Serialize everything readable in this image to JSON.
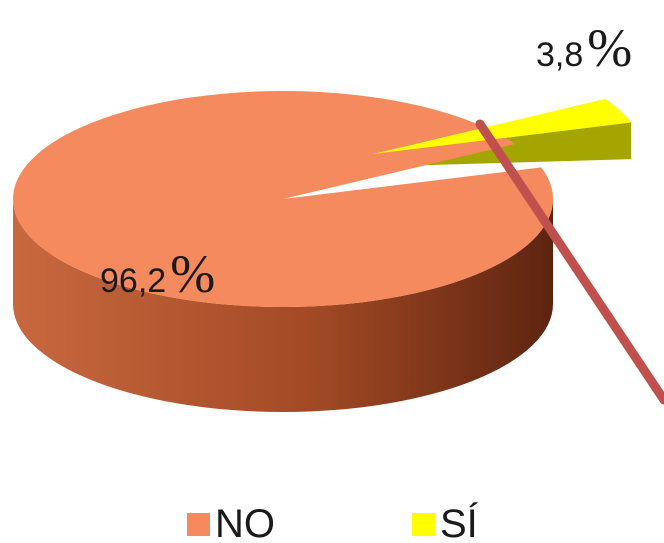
{
  "chart_data": {
    "type": "pie",
    "style": "3d-exploded",
    "title": "",
    "slices": [
      {
        "label": "NO",
        "value": 96.2,
        "display_number": "96,2",
        "display_unit": "%",
        "color": "#F58A5E",
        "side_color": "#8B3A1C"
      },
      {
        "label": "SÍ",
        "value": 3.8,
        "display_number": "3,8",
        "display_unit": "%",
        "color": "#FFFF00",
        "side_color": "#A5A500"
      }
    ],
    "legend": {
      "position": "bottom",
      "entries": [
        "NO",
        "SÍ"
      ]
    },
    "annotation_line_color": "#C0504D"
  }
}
